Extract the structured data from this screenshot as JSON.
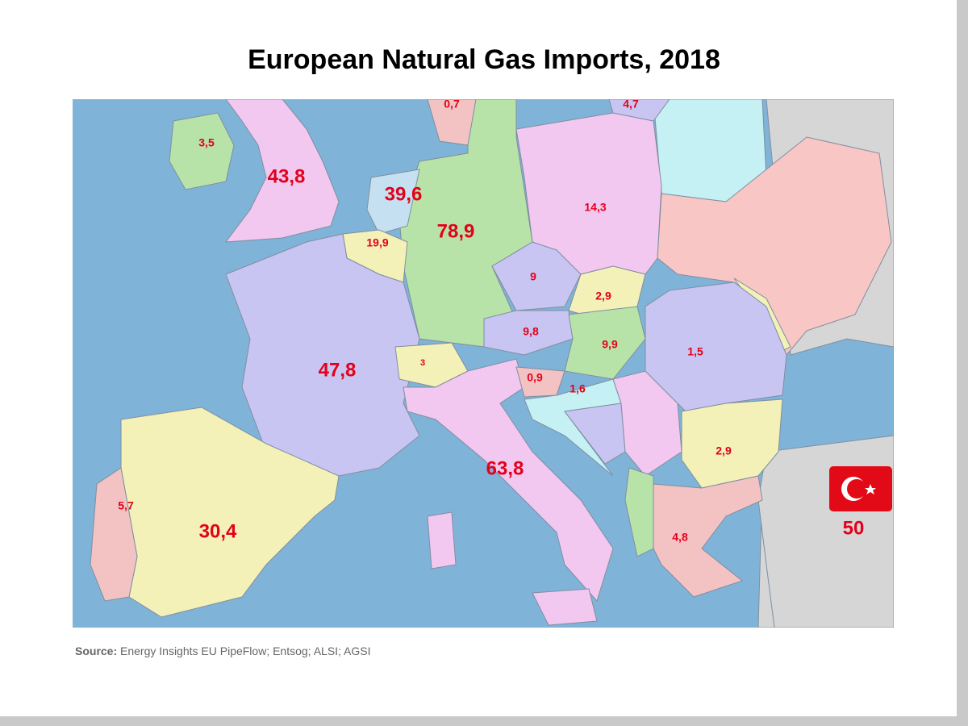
{
  "title": "European Natural Gas Imports, 2018",
  "map_labels": [
    "0,7",
    "4,7",
    "3,5",
    "43,8",
    "39,6",
    "14,3",
    "19,9",
    "78,9",
    "9",
    "2,9",
    "9,8",
    "9,9",
    "1,5",
    "3",
    "47,8",
    "0,9",
    "1,6",
    "2,9",
    "63,8",
    "5,7",
    "30,4",
    "4,8",
    "50"
  ],
  "source": {
    "label": "Source:",
    "text": "Energy Insights EU PipeFlow; Entsog; ALSI; AGSI"
  }
}
